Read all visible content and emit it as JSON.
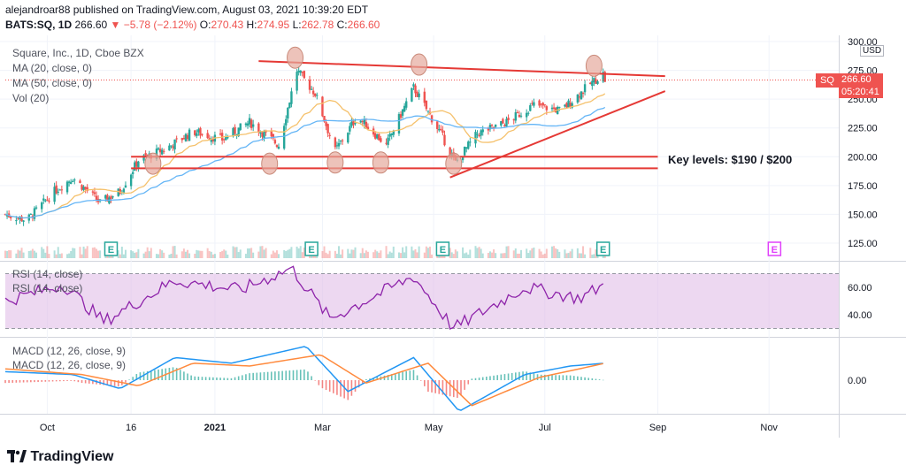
{
  "header": {
    "line1": "alejandroar88 published on TradingView.com, August 03, 2021 10:39:20 EDT",
    "symbol": "BATS:SQ, 1D",
    "last": "266.60",
    "change": "▼ −5.78 (−2.12%)",
    "o_label": "O:",
    "o": "270.43",
    "h_label": "H:",
    "h": "274.95",
    "l_label": "L:",
    "l": "262.78",
    "c_label": "C:",
    "c": "266.60"
  },
  "legends": {
    "title": "Square, Inc., 1D, Cboe BZX",
    "ma20": "MA (20, close, 0)",
    "ma50": "MA (50, close, 0)",
    "vol": "Vol (20)",
    "rsi_a": "RSI (14, close)",
    "rsi_b": "RSI (14, close)",
    "macd_a": "MACD (12, 26, close, 9)",
    "macd_b": "MACD (12, 26, close, 9)"
  },
  "price_tag": {
    "symbol": "SQ",
    "price": "266.60",
    "countdown": "05:20:41",
    "currency": "USD"
  },
  "annotation": "Key levels: $190 / $200",
  "earnings_marker": "E",
  "footer": {
    "brand": "TradingView"
  },
  "colors": {
    "up": "#26a69a",
    "down": "#ef5350",
    "ma20": "#f5c16c",
    "ma50": "#64b5f6",
    "rsi_line": "#8e24aa",
    "rsi_band": "#e1bee7",
    "macd": "#2196f3",
    "signal": "#ff8a3d",
    "trendline": "#e53935",
    "earnings": "#26a69a",
    "earnings_future": "#e040fb"
  },
  "chart_data": [
    {
      "type": "candlestick",
      "title": "Square, Inc., 1D, Cboe BZX",
      "x_ticks": [
        "Oct",
        "16",
        "2021",
        "Mar",
        "May",
        "Jul",
        "Sep",
        "Nov"
      ],
      "y_ticks": [
        "300.00",
        "275.00",
        "250.00",
        "225.00",
        "200.00",
        "175.00",
        "150.00",
        "125.00"
      ],
      "ylim": [
        115,
        300
      ],
      "series_close_anchors": [
        {
          "date": "2020-09-08",
          "close": 150
        },
        {
          "date": "2020-09-20",
          "close": 145
        },
        {
          "date": "2020-10-05",
          "close": 170
        },
        {
          "date": "2020-10-15",
          "close": 182
        },
        {
          "date": "2020-10-30",
          "close": 160
        },
        {
          "date": "2020-11-10",
          "close": 170
        },
        {
          "date": "2020-11-20",
          "close": 197
        },
        {
          "date": "2020-12-05",
          "close": 207
        },
        {
          "date": "2020-12-20",
          "close": 222
        },
        {
          "date": "2021-01-05",
          "close": 215
        },
        {
          "date": "2021-01-20",
          "close": 230
        },
        {
          "date": "2021-02-05",
          "close": 210
        },
        {
          "date": "2021-02-15",
          "close": 275
        },
        {
          "date": "2021-02-25",
          "close": 255
        },
        {
          "date": "2021-03-08",
          "close": 205
        },
        {
          "date": "2021-03-20",
          "close": 235
        },
        {
          "date": "2021-04-05",
          "close": 210
        },
        {
          "date": "2021-04-20",
          "close": 260
        },
        {
          "date": "2021-05-05",
          "close": 220
        },
        {
          "date": "2021-05-13",
          "close": 195
        },
        {
          "date": "2021-05-25",
          "close": 220
        },
        {
          "date": "2021-06-10",
          "close": 230
        },
        {
          "date": "2021-06-25",
          "close": 245
        },
        {
          "date": "2021-07-10",
          "close": 240
        },
        {
          "date": "2021-07-25",
          "close": 262
        },
        {
          "date": "2021-08-02",
          "close": 272
        },
        {
          "date": "2021-08-03",
          "close": 266.6
        }
      ],
      "moving_averages": [
        {
          "name": "MA (20, close, 0)",
          "color": "#f5c16c"
        },
        {
          "name": "MA (50, close, 0)",
          "color": "#64b5f6"
        }
      ],
      "earnings_dates": [
        "2020-11-05",
        "2021-02-23",
        "2021-05-06",
        "2021-08-02",
        "2021-11-04"
      ],
      "key_levels": [
        190,
        200
      ],
      "trendlines": [
        {
          "from": {
            "date": "2021-01-25",
            "price": 283
          },
          "to": {
            "date": "2021-09-05",
            "price": 270
          }
        },
        {
          "from": {
            "date": "2021-05-10",
            "price": 182
          },
          "to": {
            "date": "2021-09-05",
            "price": 257
          }
        }
      ]
    },
    {
      "type": "line",
      "title": "RSI (14, close)",
      "y_ticks": [
        "60.00",
        "40.00"
      ],
      "ylim": [
        25,
        75
      ],
      "band": [
        30,
        70
      ],
      "values_anchors": [
        {
          "date": "2020-09-08",
          "value": 50
        },
        {
          "date": "2020-10-10",
          "value": 62
        },
        {
          "date": "2020-11-01",
          "value": 35
        },
        {
          "date": "2020-12-10",
          "value": 65
        },
        {
          "date": "2021-01-15",
          "value": 58
        },
        {
          "date": "2021-02-12",
          "value": 74
        },
        {
          "date": "2021-03-05",
          "value": 37
        },
        {
          "date": "2021-04-20",
          "value": 68
        },
        {
          "date": "2021-05-12",
          "value": 30
        },
        {
          "date": "2021-06-20",
          "value": 60
        },
        {
          "date": "2021-07-20",
          "value": 52
        },
        {
          "date": "2021-08-03",
          "value": 62
        }
      ]
    },
    {
      "type": "line",
      "title": "MACD (12, 26, close, 9)",
      "y_ticks": [
        "0.00"
      ],
      "ylim": [
        -15,
        15
      ],
      "series": [
        {
          "name": "MACD",
          "values_anchors": [
            {
              "date": "2020-09-08",
              "value": 3
            },
            {
              "date": "2020-10-15",
              "value": 2
            },
            {
              "date": "2020-11-10",
              "value": -3
            },
            {
              "date": "2020-12-10",
              "value": 8
            },
            {
              "date": "2021-01-10",
              "value": 6
            },
            {
              "date": "2021-02-20",
              "value": 12
            },
            {
              "date": "2021-03-15",
              "value": -4
            },
            {
              "date": "2021-04-20",
              "value": 8
            },
            {
              "date": "2021-05-15",
              "value": -11
            },
            {
              "date": "2021-06-20",
              "value": 2
            },
            {
              "date": "2021-07-15",
              "value": 5
            },
            {
              "date": "2021-08-03",
              "value": 6
            }
          ]
        },
        {
          "name": "Signal",
          "values_anchors": [
            {
              "date": "2020-09-08",
              "value": 4
            },
            {
              "date": "2020-10-20",
              "value": 2
            },
            {
              "date": "2020-11-20",
              "value": -2
            },
            {
              "date": "2020-12-20",
              "value": 6
            },
            {
              "date": "2021-01-20",
              "value": 5
            },
            {
              "date": "2021-02-28",
              "value": 9
            },
            {
              "date": "2021-03-25",
              "value": -1
            },
            {
              "date": "2021-04-28",
              "value": 6
            },
            {
              "date": "2021-05-22",
              "value": -9
            },
            {
              "date": "2021-06-28",
              "value": 1
            },
            {
              "date": "2021-07-20",
              "value": 4
            },
            {
              "date": "2021-08-03",
              "value": 6
            }
          ]
        }
      ]
    }
  ]
}
